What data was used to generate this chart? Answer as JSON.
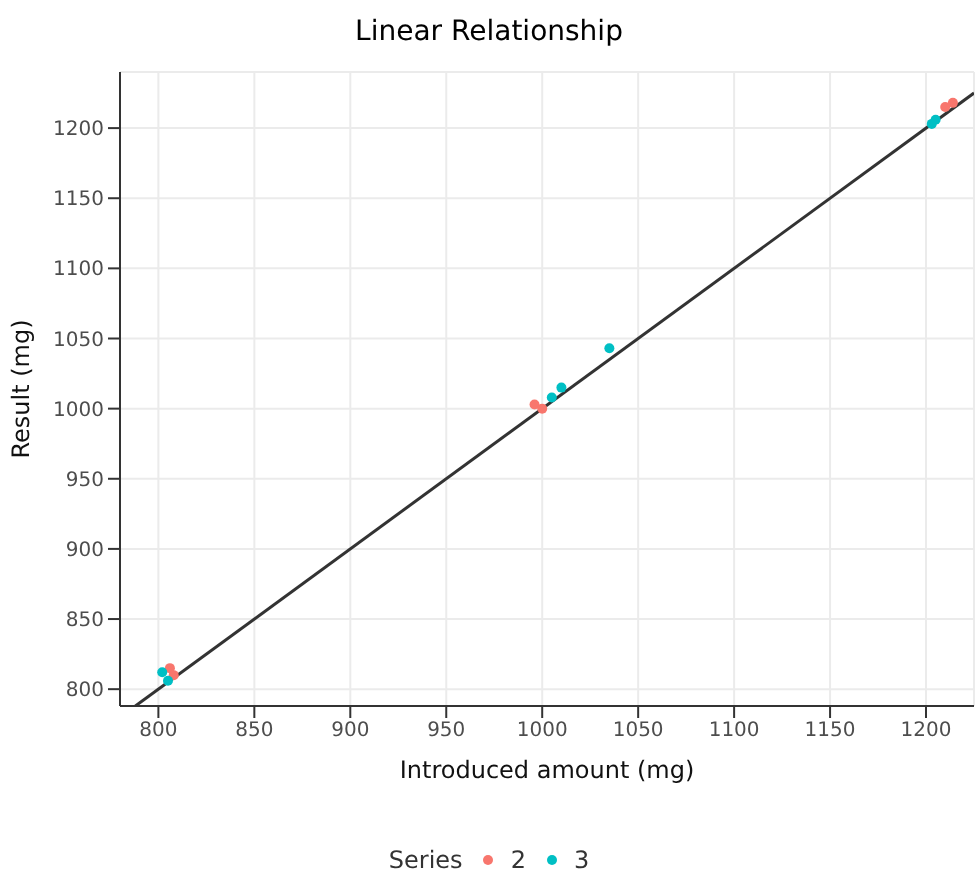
{
  "chart_data": {
    "type": "scatter",
    "title": "Linear Relationship",
    "xlabel": "Introduced amount (mg)",
    "ylabel": "Result (mg)",
    "legend_title": "Series",
    "xlim": [
      780,
      1225
    ],
    "ylim": [
      788,
      1240
    ],
    "xticks": [
      800,
      850,
      900,
      950,
      1000,
      1050,
      1100,
      1150,
      1200
    ],
    "yticks": [
      800,
      850,
      900,
      950,
      1000,
      1050,
      1100,
      1150,
      1200
    ],
    "grid": true,
    "legend": "bottom",
    "marker": "circle",
    "series": [
      {
        "name": "2",
        "color": "#f8766d",
        "x": [
          806,
          808,
          996,
          1000,
          1210,
          1214
        ],
        "values": [
          815,
          810,
          1003,
          1000,
          1215,
          1218
        ]
      },
      {
        "name": "3",
        "color": "#00bfc4",
        "x": [
          802,
          805,
          1005,
          1010,
          1035,
          1203,
          1205
        ],
        "values": [
          812,
          806,
          1008,
          1015,
          1043,
          1203,
          1206
        ]
      },
      {
        "type": "line",
        "color": "#333333",
        "x": [
          788,
          1225
        ],
        "values": [
          788,
          1225
        ],
        "marker": "none",
        "line_style": "solid"
      }
    ]
  }
}
